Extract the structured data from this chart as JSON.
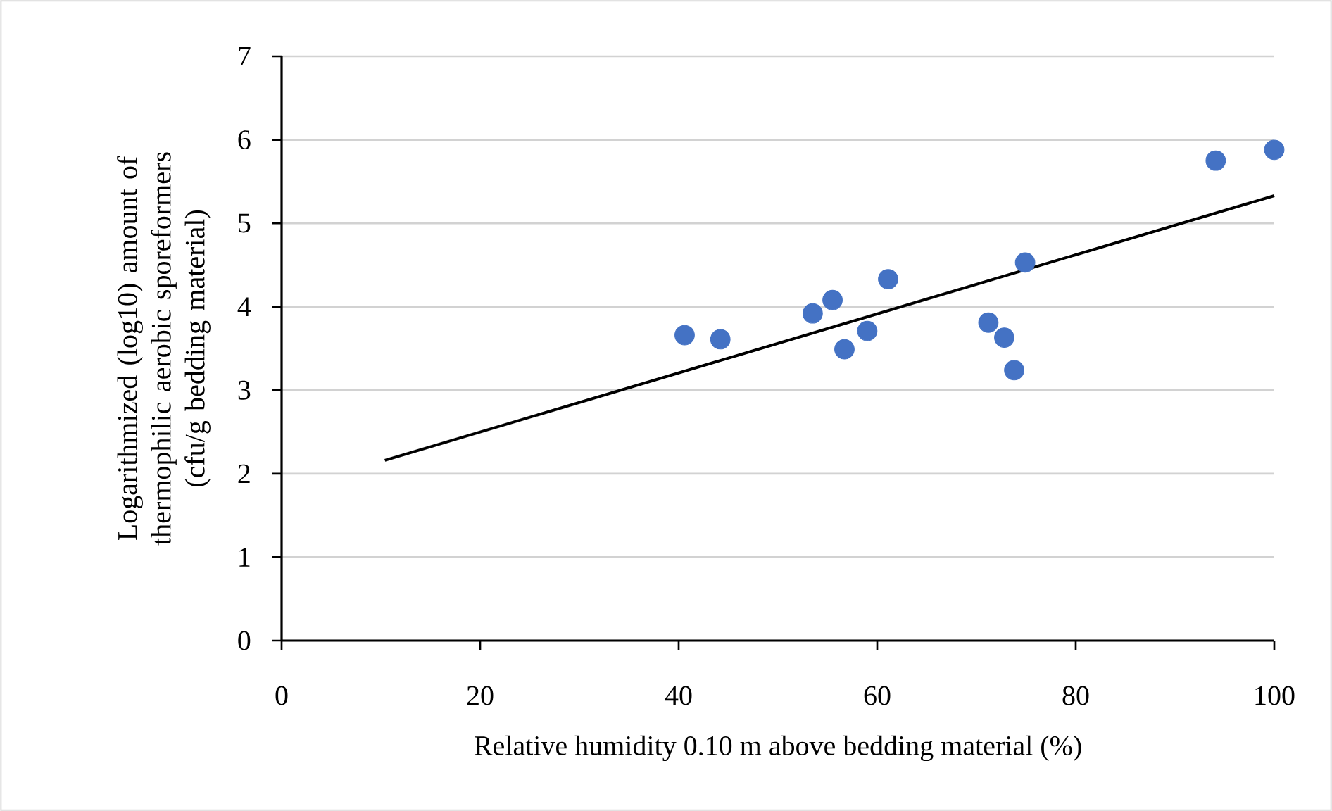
{
  "chart_data": {
    "type": "scatter",
    "xlabel": "Relative humidity 0.10 m above bedding material (%)",
    "ylabel": "Logarithmized (log10) amount of thermophilic aerobic sporeformers (cfu/g bedding material)",
    "xlim": [
      0,
      100
    ],
    "ylim": [
      0,
      7
    ],
    "xticks": [
      0,
      20,
      40,
      60,
      80,
      100
    ],
    "yticks": [
      0,
      1,
      2,
      3,
      4,
      5,
      6,
      7
    ],
    "grid": "y",
    "marker": "circle",
    "series": [
      {
        "color": "#4472c4",
        "x": [
          40.6,
          44.2,
          53.5,
          55.5,
          56.7,
          59.0,
          61.1,
          71.2,
          72.8,
          73.8,
          74.9,
          94.1,
          100
        ],
        "values": [
          3.66,
          3.61,
          3.92,
          4.08,
          3.49,
          3.71,
          4.33,
          3.81,
          3.63,
          3.24,
          4.53,
          5.75,
          5.88
        ]
      },
      {
        "type": "line",
        "marker": "none",
        "color": "#000000",
        "x": [
          10.4,
          100
        ],
        "values": [
          2.16,
          5.33
        ]
      }
    ]
  }
}
